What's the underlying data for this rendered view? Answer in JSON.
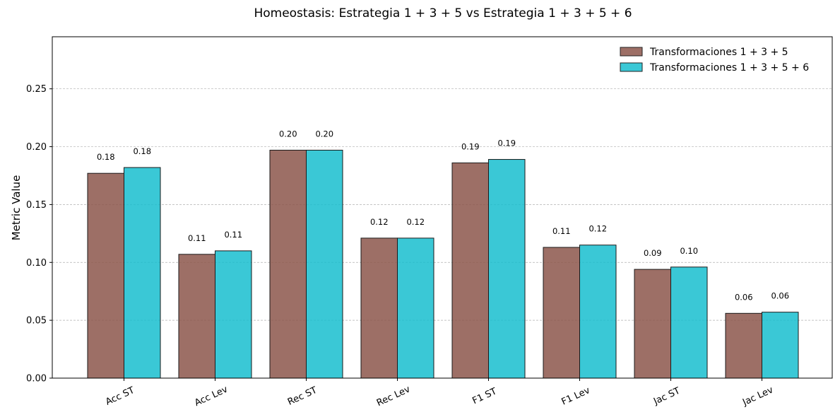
{
  "chart_data": {
    "type": "bar",
    "title": "Homeostasis: Estrategia 1 + 3 + 5 vs Estrategia 1 + 3 + 5 + 6",
    "xlabel": "",
    "ylabel": "Metric Value",
    "ylim": [
      0,
      0.295
    ],
    "yticks": [
      0.0,
      0.05,
      0.1,
      0.15,
      0.2,
      0.25
    ],
    "ytick_labels": [
      "0.00",
      "0.05",
      "0.10",
      "0.15",
      "0.20",
      "0.25"
    ],
    "grid": "y-dashed",
    "legend_position": "top-right",
    "categories": [
      "Acc ST",
      "Acc Lev",
      "Rec ST",
      "Rec Lev",
      "F1 ST",
      "F1 Lev",
      "Jac ST",
      "Jac Lev"
    ],
    "series": [
      {
        "name": "Transformaciones 1 + 3 + 5",
        "color": "#8c564b",
        "values": [
          0.177,
          0.107,
          0.197,
          0.121,
          0.186,
          0.113,
          0.094,
          0.056
        ],
        "labels": [
          "0.18",
          "0.11",
          "0.20",
          "0.12",
          "0.19",
          "0.11",
          "0.09",
          "0.06"
        ]
      },
      {
        "name": "Transformaciones 1 + 3 + 5 + 6",
        "color": "#17becf",
        "values": [
          0.182,
          0.11,
          0.197,
          0.121,
          0.189,
          0.115,
          0.096,
          0.057
        ],
        "labels": [
          "0.18",
          "0.11",
          "0.20",
          "0.12",
          "0.19",
          "0.12",
          "0.10",
          "0.06"
        ]
      }
    ]
  }
}
